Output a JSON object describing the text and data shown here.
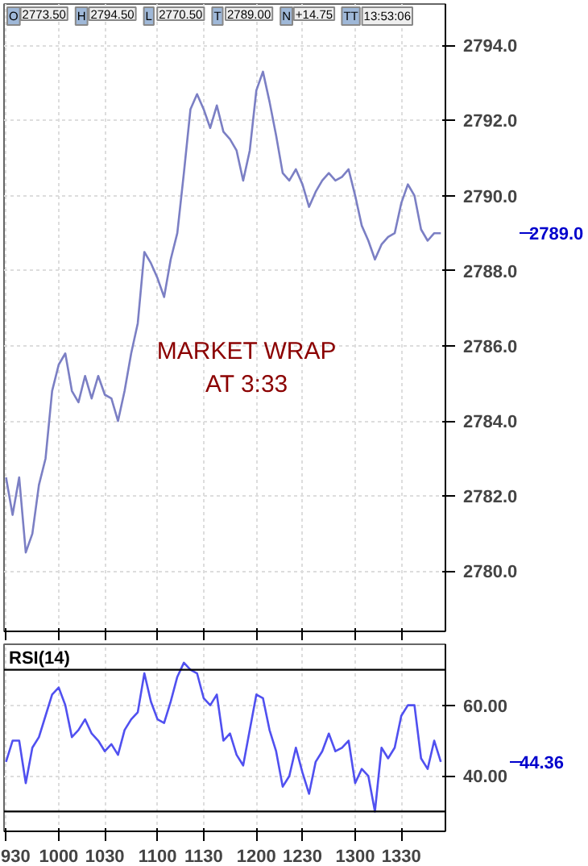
{
  "chart_data": [
    {
      "type": "line",
      "annotations": [
        "O",
        "2773.50",
        "H",
        "2794.50",
        "L",
        "2770.50",
        "T",
        "2789.00",
        "N",
        "+14.75",
        "TT",
        "13:53:06",
        "MARKET WRAP\nAT 3:33",
        "2789.0"
      ],
      "categories": [
        "930",
        null,
        null,
        null,
        null,
        null,
        null,
        null,
        "1000",
        null,
        null,
        null,
        null,
        null,
        null,
        "1030",
        null,
        null,
        null,
        null,
        null,
        null,
        null,
        "1100",
        null,
        null,
        null,
        null,
        null,
        null,
        "1130",
        null,
        null,
        null,
        null,
        null,
        null,
        null,
        "1200",
        null,
        null,
        null,
        null,
        null,
        null,
        "1230",
        null,
        null,
        null,
        null,
        null,
        null,
        null,
        "1300",
        null,
        null,
        null,
        null,
        null,
        null,
        "1330",
        null,
        null,
        null,
        null,
        null,
        null
      ],
      "ylim": [
        2778.4,
        2795.1
      ],
      "yticks": [
        {
          "value": 2780,
          "label": "2780.0"
        },
        {
          "value": 2782,
          "label": "2782.0"
        },
        {
          "value": 2784,
          "label": "2784.0"
        },
        {
          "value": 2786,
          "label": "2786.0"
        },
        {
          "value": 2788,
          "label": "2788.0"
        },
        {
          "value": 2790,
          "label": "2790.0"
        },
        {
          "value": 2792,
          "label": "2792.0"
        },
        {
          "value": 2794,
          "label": "2794.0"
        }
      ],
      "tick_labels": "y",
      "grid": true,
      "line_style": "solid",
      "series": [
        {
          "color": "#7b7fc4",
          "values": [
            2782.5,
            2781.5,
            2782.5,
            2780.5,
            2781,
            2782.3,
            2783,
            2784.8,
            2785.5,
            2785.8,
            2784.8,
            2784.5,
            2785.2,
            2784.6,
            2785.2,
            2784.7,
            2784.6,
            2784,
            2784.8,
            2785.8,
            2786.6,
            2788.5,
            2788.2,
            2787.8,
            2787.3,
            2788.3,
            2789,
            2790.6,
            2792.3,
            2792.7,
            2792.3,
            2791.8,
            2792.4,
            2791.7,
            2791.5,
            2791.2,
            2790.4,
            2791.2,
            2792.8,
            2793.3,
            2792.5,
            2791.6,
            2790.6,
            2790.4,
            2790.7,
            2790.3,
            2789.7,
            2790.1,
            2790.4,
            2790.6,
            2790.4,
            2790.5,
            2790.7,
            2790,
            2789.2,
            2788.8,
            2788.3,
            2788.7,
            2788.9,
            2789,
            2789.8,
            2790.3,
            2790,
            2789.1,
            2788.8,
            2789,
            2789
          ]
        }
      ]
    },
    {
      "type": "line",
      "title": "RSI(14)",
      "annotations": [
        "44.36"
      ],
      "categories": [
        "930",
        null,
        null,
        null,
        null,
        null,
        null,
        null,
        "1000",
        null,
        null,
        null,
        null,
        null,
        null,
        "1030",
        null,
        null,
        null,
        null,
        null,
        null,
        null,
        "1100",
        null,
        null,
        null,
        null,
        null,
        null,
        "1130",
        null,
        null,
        null,
        null,
        null,
        null,
        null,
        "1200",
        null,
        null,
        null,
        null,
        null,
        null,
        "1230",
        null,
        null,
        null,
        null,
        null,
        null,
        null,
        "1300",
        null,
        null,
        null,
        null,
        null,
        null,
        "1330",
        null,
        null,
        null,
        null,
        null,
        null
      ],
      "ylim": [
        24.4,
        77.2
      ],
      "yticks": [
        {
          "value": 40,
          "label": "40.00"
        },
        {
          "value": 60,
          "label": "60.00"
        }
      ],
      "grid": true,
      "line_style": "solid",
      "ref_lines": [
        {
          "axis": "y",
          "value": 70,
          "color": "#000000"
        },
        {
          "axis": "y",
          "value": 30,
          "color": "#000000"
        }
      ],
      "series": [
        {
          "color": "#5050f0",
          "values": [
            44,
            50,
            50,
            38,
            48,
            51,
            57,
            63,
            65,
            60,
            51,
            53,
            56,
            52,
            50,
            47,
            49,
            46,
            53,
            56,
            58,
            69,
            61,
            56,
            55,
            61,
            68,
            72,
            70,
            69,
            62,
            60,
            63,
            50,
            52,
            46,
            43,
            53,
            63,
            62,
            53,
            47,
            37,
            40,
            48,
            41,
            35,
            44,
            47,
            52,
            47,
            48,
            50,
            38,
            42,
            40,
            30,
            48,
            45,
            48,
            57,
            60,
            60,
            45,
            42,
            50,
            44
          ]
        }
      ]
    }
  ]
}
